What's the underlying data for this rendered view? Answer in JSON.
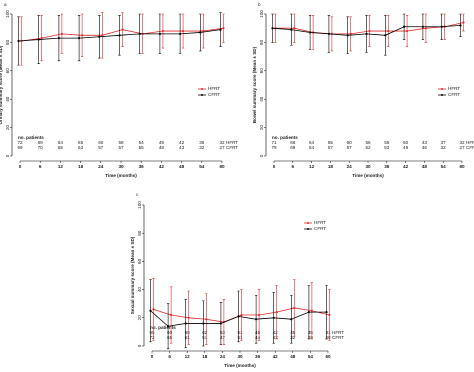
{
  "chart_data": [
    {
      "type": "line",
      "panel_label": "a",
      "ylabel": "Urinary summary score (Mean ± SD)",
      "xlabel": "Time (months)",
      "x": [
        0,
        6,
        12,
        18,
        24,
        30,
        36,
        42,
        48,
        54,
        60
      ],
      "xlim": [
        0,
        60
      ],
      "xticks": [
        0,
        6,
        12,
        18,
        24,
        30,
        36,
        42,
        48,
        54,
        60
      ],
      "ylim": [
        0,
        100
      ],
      "yticks": [
        0,
        20,
        40,
        60,
        80,
        100
      ],
      "legend": "right",
      "series": [
        {
          "name": "HFRT",
          "color": "#e32b2b",
          "values": [
            81,
            83,
            86,
            85,
            85,
            89,
            86,
            88,
            88,
            88,
            90
          ],
          "errors": [
            17,
            16,
            14,
            15,
            16,
            12,
            14,
            12,
            12,
            12,
            10
          ]
        },
        {
          "name": "CFRT",
          "color": "#000000",
          "values": [
            81,
            82,
            83,
            83,
            84,
            85,
            86,
            86,
            86,
            87,
            89
          ],
          "errors": [
            17,
            17,
            16,
            16,
            15,
            14,
            14,
            14,
            14,
            13,
            12
          ]
        }
      ],
      "patients": {
        "label": "no. patients",
        "rows": [
          {
            "name": "HFRT",
            "values": [
              72,
              69,
              64,
              65,
              60,
              58,
              54,
              49,
              42,
              36,
              32
            ]
          },
          {
            "name": "CFRT",
            "values": [
              69,
              70,
              65,
              63,
              57,
              57,
              55,
              48,
              43,
              32,
              27
            ]
          }
        ]
      }
    },
    {
      "type": "line",
      "panel_label": "b",
      "ylabel": "Bowel summary score (Mean ± SD)",
      "xlabel": "Time (months)",
      "x": [
        0,
        6,
        12,
        18,
        24,
        30,
        36,
        42,
        48,
        54,
        60
      ],
      "xlim": [
        0,
        60
      ],
      "xticks": [
        0,
        6,
        12,
        18,
        24,
        30,
        36,
        42,
        48,
        54,
        60
      ],
      "ylim": [
        0,
        100
      ],
      "yticks": [
        0,
        20,
        40,
        60,
        80,
        100
      ],
      "legend": "right",
      "series": [
        {
          "name": "HFRT",
          "color": "#e32b2b",
          "values": [
            90,
            90,
            87,
            86,
            86,
            88,
            88,
            88,
            90,
            91,
            94
          ],
          "errors": [
            10,
            10,
            12,
            12,
            12,
            11,
            11,
            11,
            10,
            9,
            6
          ]
        },
        {
          "name": "CFRT",
          "color": "#000000",
          "values": [
            90,
            89,
            87,
            86,
            85,
            86,
            85,
            91,
            91,
            91,
            92
          ],
          "errors": [
            10,
            11,
            12,
            13,
            13,
            13,
            14,
            9,
            9,
            9,
            8
          ]
        }
      ],
      "patients": {
        "label": "no. patients",
        "rows": [
          {
            "name": "HFRT",
            "values": [
              71,
              66,
              64,
              65,
              60,
              56,
              55,
              50,
              43,
              37,
              32
            ]
          },
          {
            "name": "CFRT",
            "values": [
              79,
              69,
              64,
              57,
              57,
              52,
              53,
              49,
              46,
              32,
              27
            ]
          }
        ]
      }
    },
    {
      "type": "line",
      "panel_label": "c",
      "ylabel": "Sexual summary score (Mean ± SD)",
      "xlabel": "Time (months)",
      "x": [
        0,
        6,
        12,
        18,
        24,
        30,
        36,
        42,
        48,
        54,
        60
      ],
      "xlim": [
        0,
        60
      ],
      "xticks": [
        0,
        6,
        12,
        18,
        24,
        30,
        36,
        42,
        48,
        54,
        60
      ],
      "ylim": [
        0,
        100
      ],
      "yticks": [
        0,
        20,
        40,
        60,
        80,
        100
      ],
      "legend": "upper right",
      "series": [
        {
          "name": "HFRT",
          "color": "#e32b2b",
          "values": [
            26,
            22,
            20,
            19,
            17,
            22,
            22,
            24,
            27,
            25,
            22
          ],
          "errors": [
            22,
            20,
            19,
            18,
            16,
            18,
            18,
            19,
            20,
            20,
            18
          ]
        },
        {
          "name": "CFRT",
          "color": "#000000",
          "values": [
            25,
            14,
            16,
            16,
            16,
            21,
            19,
            20,
            19,
            24,
            24
          ],
          "errors": [
            22,
            16,
            17,
            16,
            15,
            18,
            17,
            18,
            17,
            19,
            19
          ]
        }
      ],
      "patients": {
        "label": "no. patients",
        "rows": [
          {
            "name": "HFRT",
            "values": [
              65,
              60,
              58,
              62,
              53,
              51,
              45,
              42,
              45,
              35,
              31
            ]
          },
          {
            "name": "CFRT",
            "values": [
              72,
              65,
              61,
              51,
              47,
              51,
              44,
              43,
              32,
              28,
              28
            ]
          }
        ]
      }
    }
  ]
}
